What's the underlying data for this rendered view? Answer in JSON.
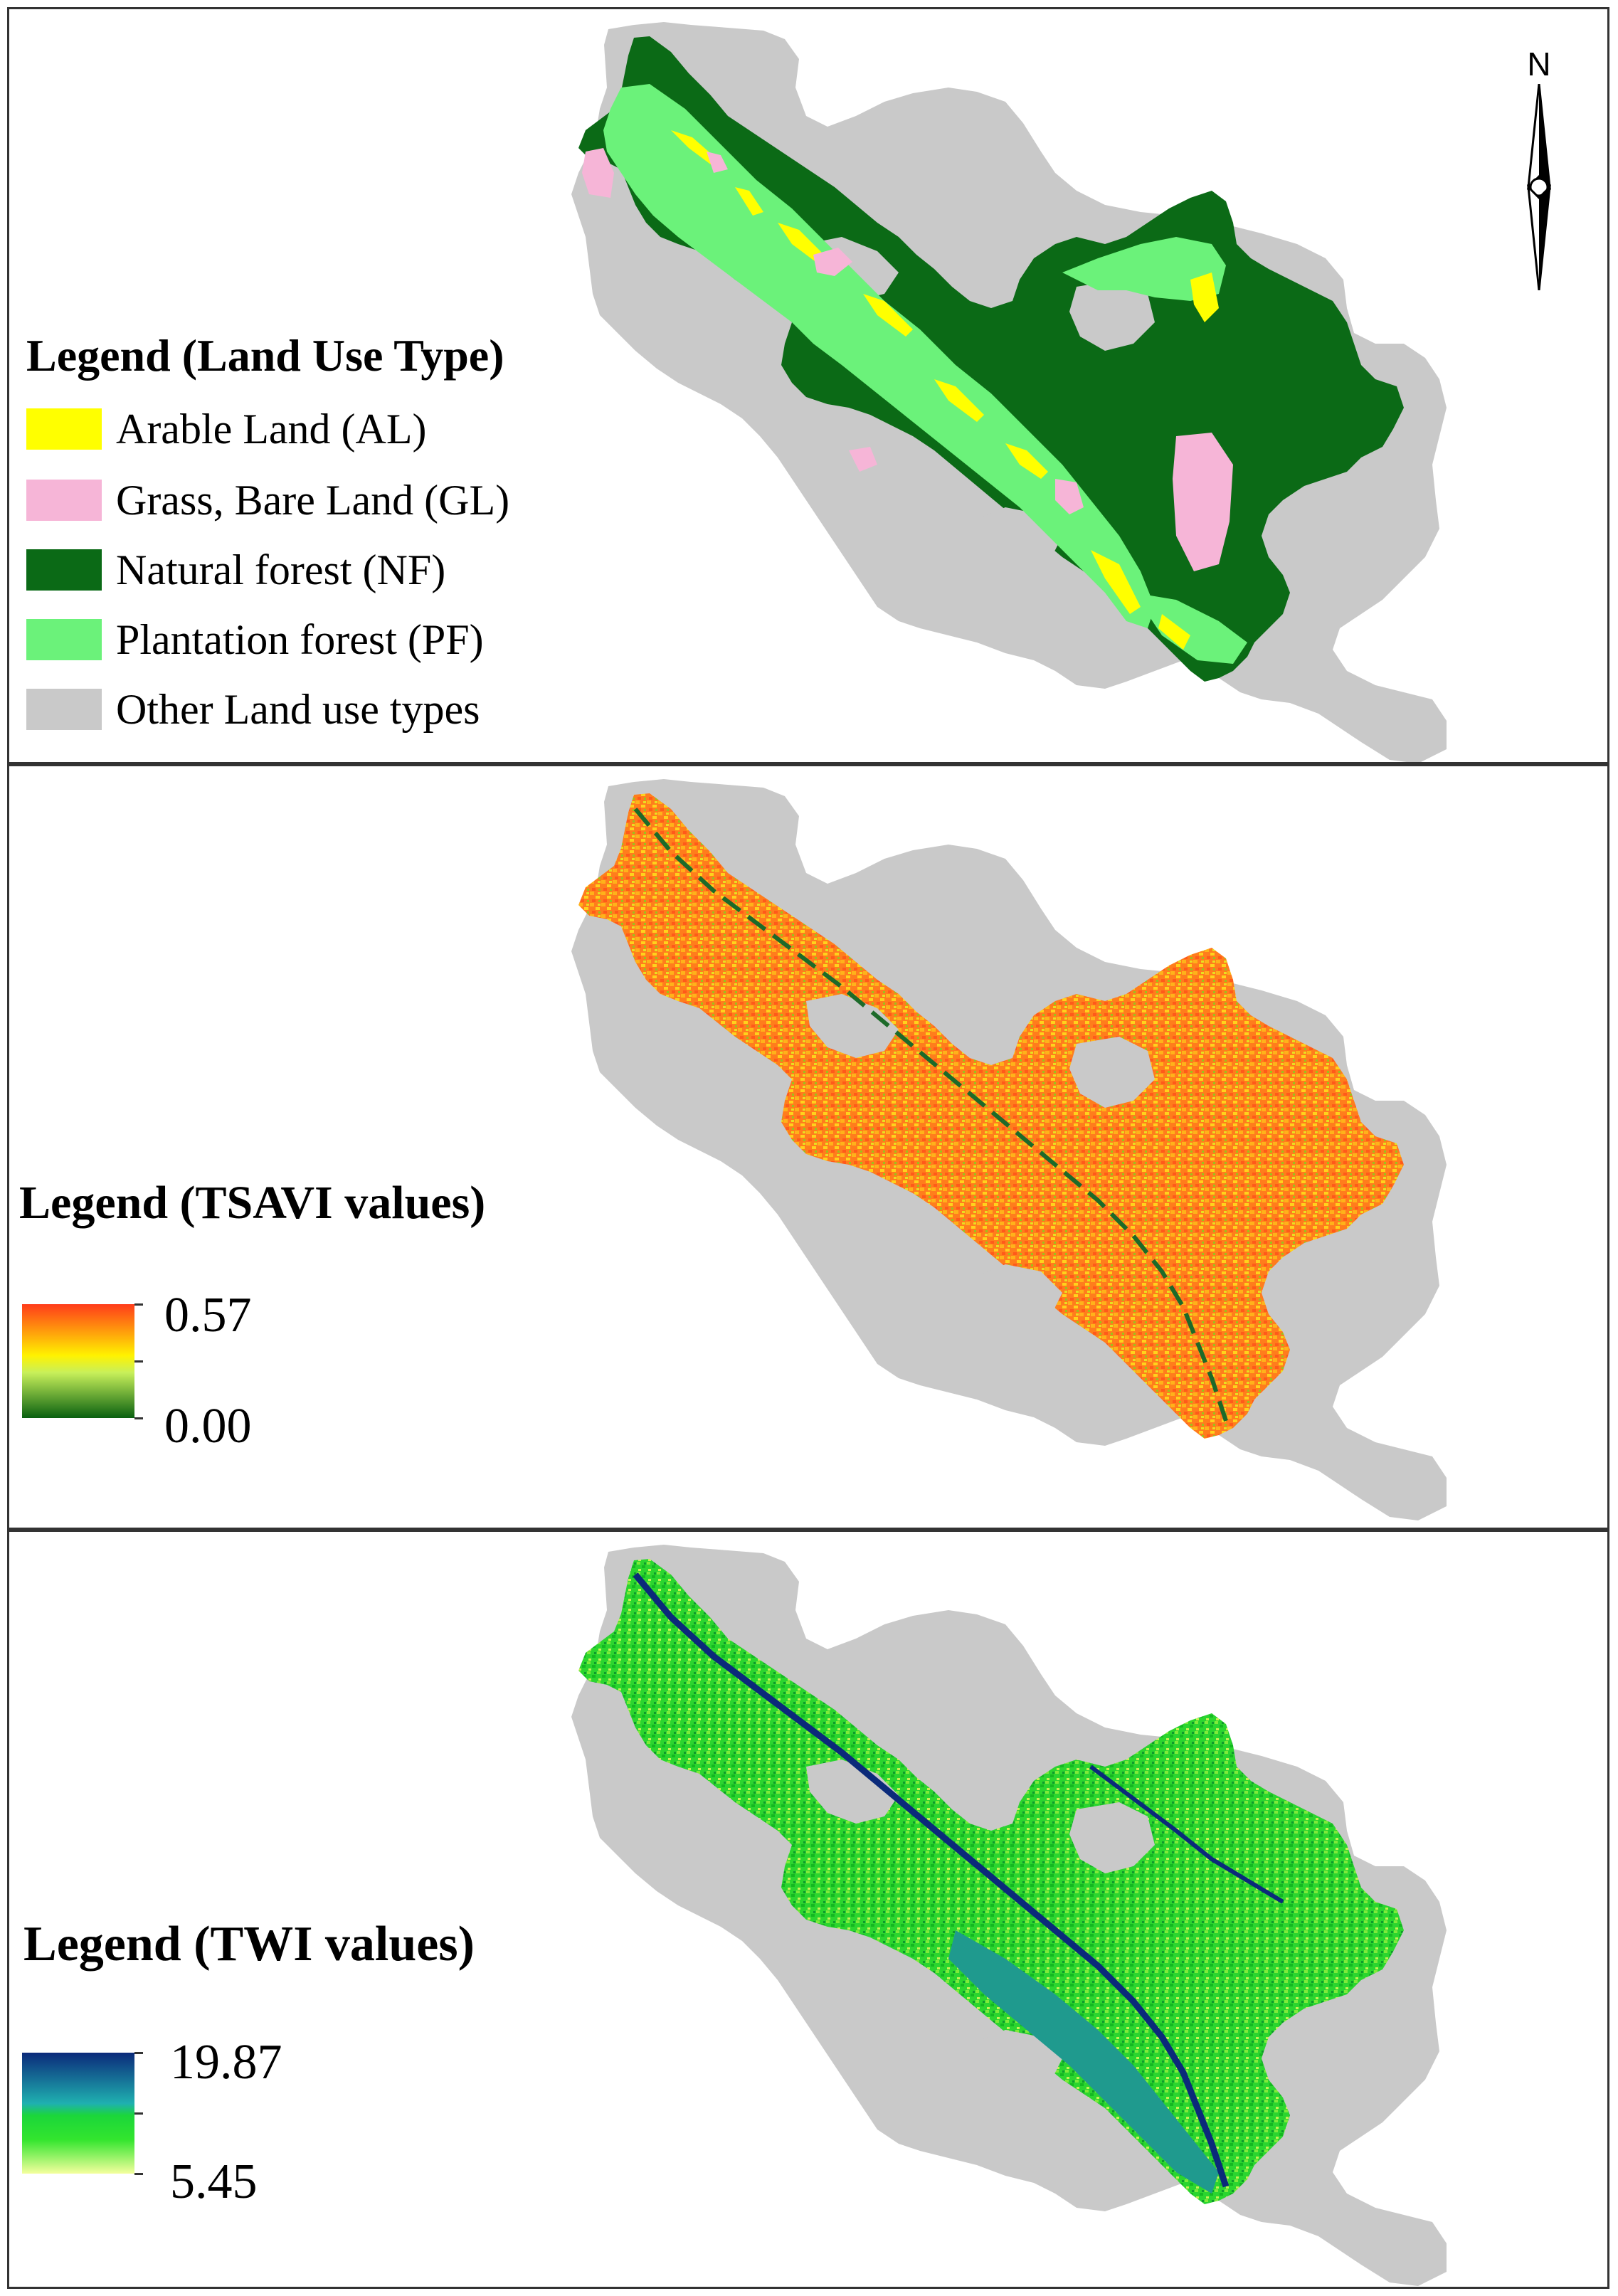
{
  "colors": {
    "arable_land": "#ffff00",
    "grass_bare_land": "#f6b5d7",
    "natural_forest": "#0b6a16",
    "plantation_forest": "#6bf27a",
    "other_land": "#c9c9c9",
    "tsavi_high": "#ff4a1a",
    "tsavi_mid": "#fff000",
    "tsavi_low": "#0a6a10",
    "twi_high": "#0b2a7a",
    "twi_mid": "#16e02a",
    "twi_low": "#f2ff9a"
  },
  "panel_landuse": {
    "north_label": "N",
    "legend_title": "Legend (Land Use Type)",
    "legend_items": [
      {
        "label": "Arable Land (AL)",
        "color": "#ffff00"
      },
      {
        "label": "Grass, Bare Land (GL)",
        "color": "#f6b5d7"
      },
      {
        "label": "Natural forest (NF)",
        "color": "#0b6a16"
      },
      {
        "label": "Plantation forest (PF)",
        "color": "#6bf27a"
      },
      {
        "label": "Other Land use types",
        "color": "#c9c9c9"
      }
    ]
  },
  "panel_tsavi": {
    "legend_title": "Legend (TSAVI values)",
    "max_label": "0.57",
    "min_label": "0.00"
  },
  "panel_twi": {
    "legend_title": "Legend (TWI values)",
    "max_label": "19.87",
    "min_label": "5.45"
  }
}
